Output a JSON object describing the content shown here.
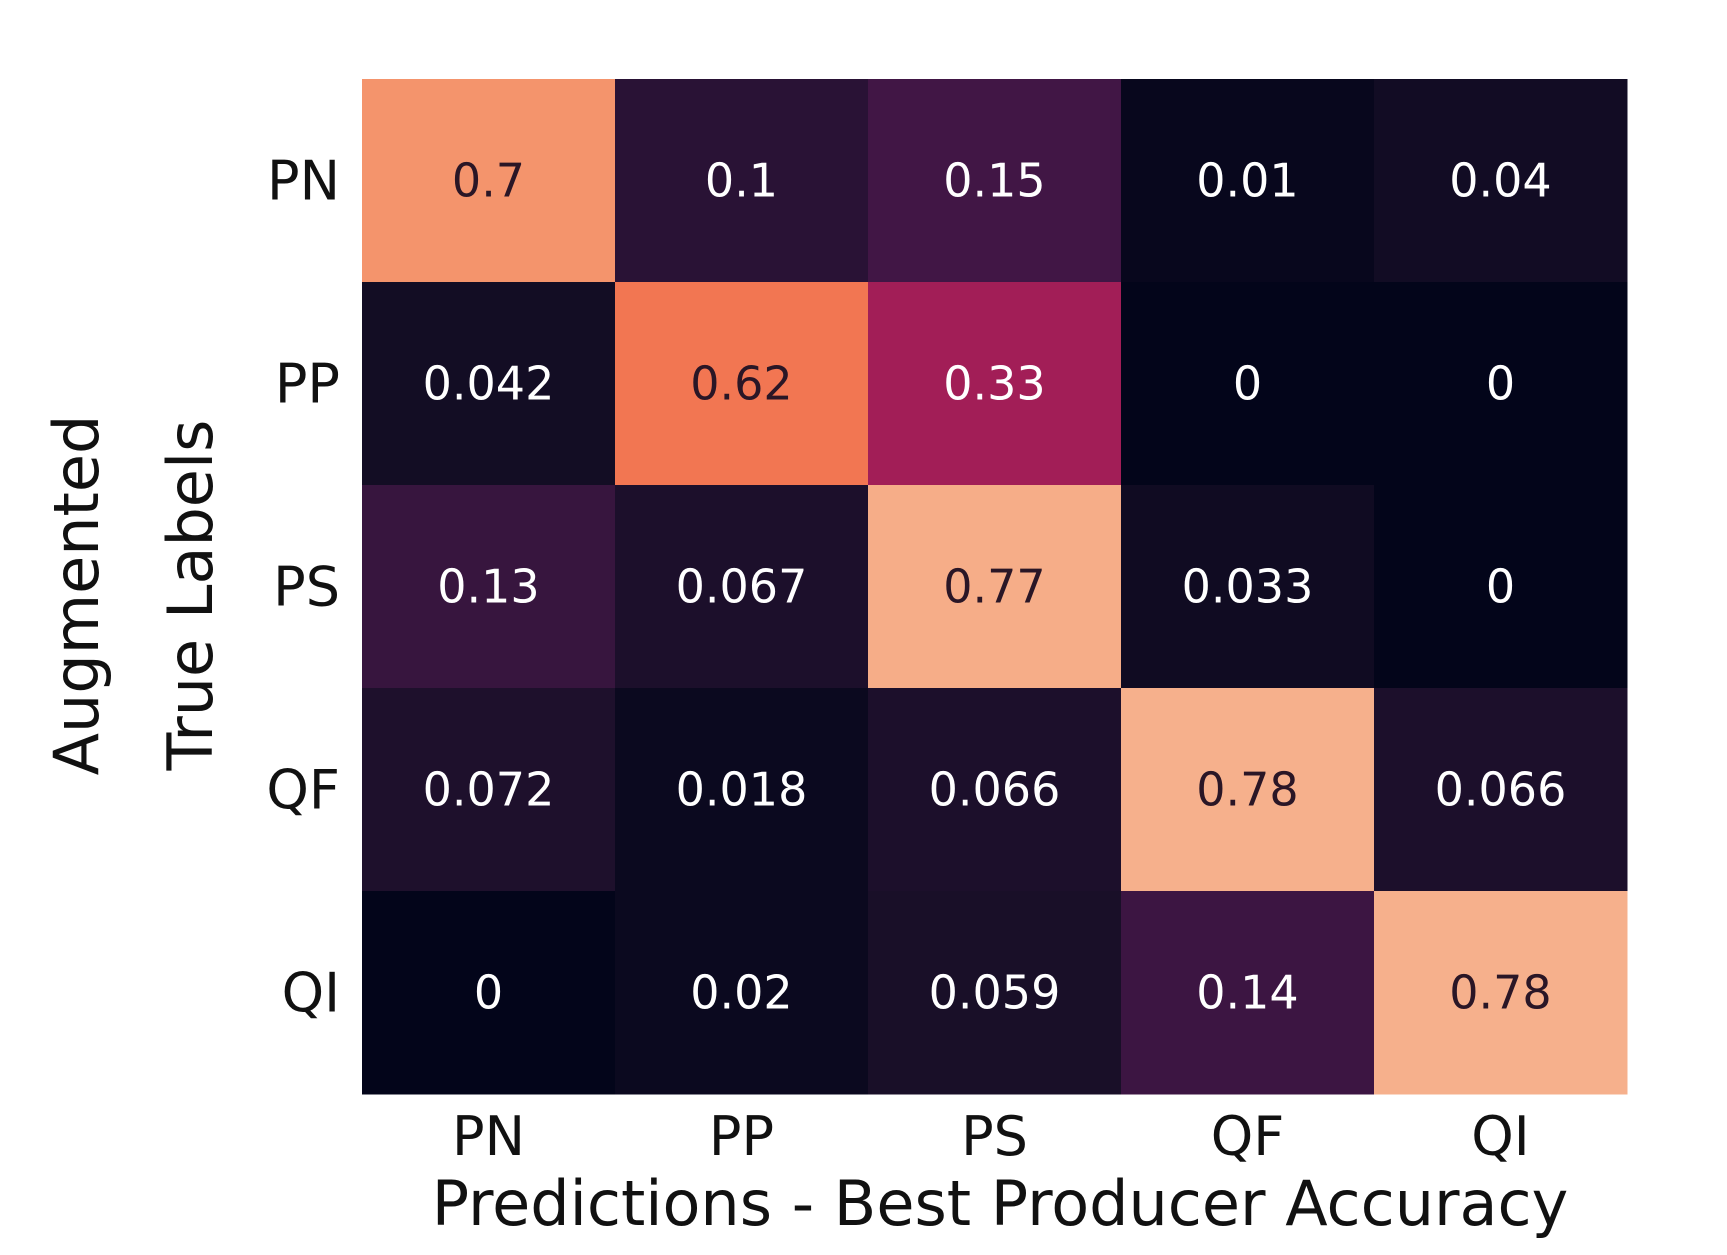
{
  "chart_data": {
    "type": "heatmap",
    "x_categories": [
      "PN",
      "PP",
      "PS",
      "QF",
      "QI"
    ],
    "y_categories": [
      "PN",
      "PP",
      "PS",
      "QF",
      "QI"
    ],
    "values": [
      [
        0.7,
        0.1,
        0.15,
        0.01,
        0.04
      ],
      [
        0.042,
        0.62,
        0.33,
        0,
        0
      ],
      [
        0.13,
        0.067,
        0.77,
        0.033,
        0
      ],
      [
        0.072,
        0.018,
        0.066,
        0.78,
        0.066
      ],
      [
        0,
        0.02,
        0.059,
        0.14,
        0.78
      ]
    ],
    "value_labels": [
      [
        "0.7",
        "0.1",
        "0.15",
        "0.01",
        "0.04"
      ],
      [
        "0.042",
        "0.62",
        "0.33",
        "0",
        "0"
      ],
      [
        "0.13",
        "0.067",
        "0.77",
        "0.033",
        "0"
      ],
      [
        "0.072",
        "0.018",
        "0.066",
        "0.78",
        "0.066"
      ],
      [
        "0",
        "0.02",
        "0.059",
        "0.14",
        "0.78"
      ]
    ],
    "xlabel": "Predictions - Best Producer Accuracy",
    "ylabel": [
      "Augmented",
      "True Labels"
    ],
    "colormap": "rocket",
    "vmin": 0,
    "vmax": 0.78,
    "colorbar": false
  }
}
